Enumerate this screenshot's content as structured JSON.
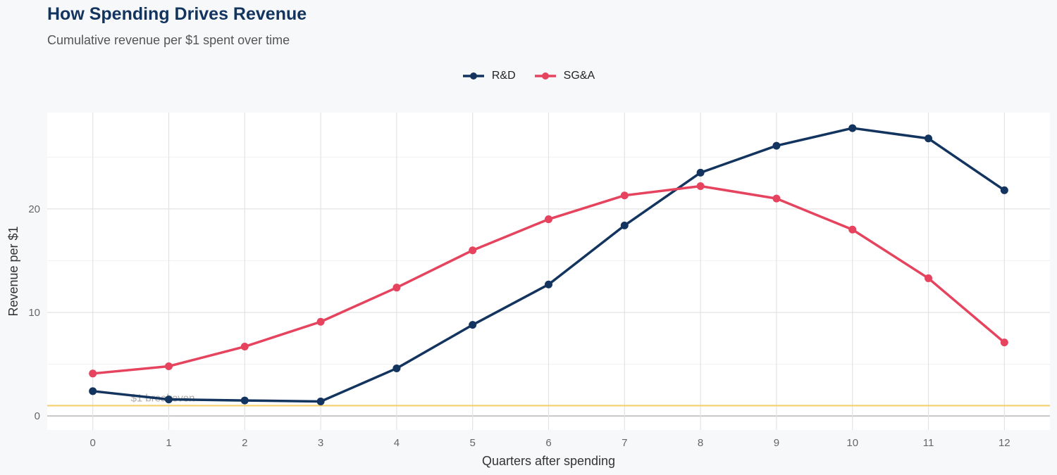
{
  "chart_data": {
    "type": "line",
    "title": "How Spending Drives Revenue",
    "subtitle": "Cumulative revenue per $1 spent over time",
    "xlabel": "Quarters after spending",
    "ylabel": "Revenue per $1",
    "x": [
      0,
      1,
      2,
      3,
      4,
      5,
      6,
      7,
      8,
      9,
      10,
      11,
      12
    ],
    "xlim": [
      -0.6,
      12.6
    ],
    "ylim": [
      -1.35,
      29.3
    ],
    "yticks": [
      0,
      10,
      20
    ],
    "grid": true,
    "legend_position": "top",
    "series": [
      {
        "name": "R&D",
        "color": "#12345e",
        "values": [
          2.4,
          1.6,
          1.5,
          1.4,
          4.6,
          8.8,
          12.7,
          18.4,
          23.5,
          26.1,
          27.8,
          26.8,
          21.8
        ]
      },
      {
        "name": "SG&A",
        "color": "#e5435e",
        "values": [
          4.1,
          4.8,
          6.7,
          9.1,
          12.4,
          16.0,
          19.0,
          21.3,
          22.2,
          21.0,
          18.0,
          13.3,
          7.1
        ]
      }
    ],
    "reference_line": {
      "y": 1,
      "label": "$1 breakeven",
      "color": "#f5cf6b"
    }
  }
}
